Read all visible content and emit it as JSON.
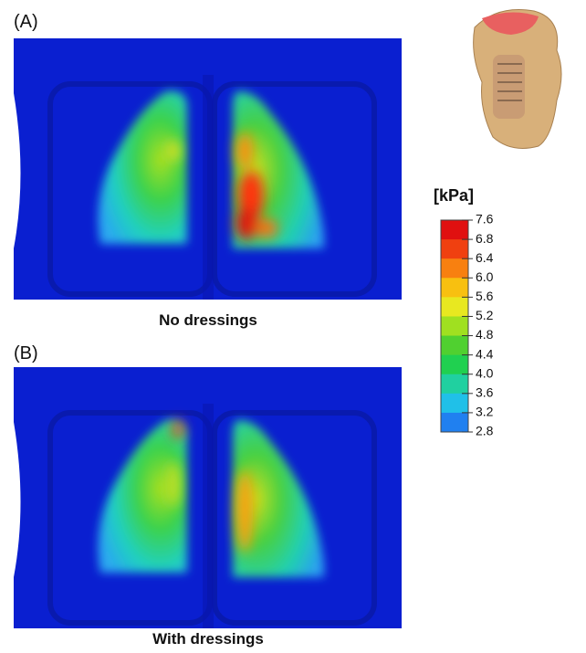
{
  "panels": [
    {
      "label": "(A)",
      "caption": "No dressings"
    },
    {
      "label": "(B)",
      "caption": "With dressings"
    }
  ],
  "colorbar": {
    "title": "[kPa]",
    "ticks": [
      "7.6",
      "6.8",
      "6.4",
      "6.0",
      "5.6",
      "5.2",
      "4.8",
      "4.4",
      "4.0",
      "3.6",
      "3.2",
      "2.8"
    ]
  }
}
